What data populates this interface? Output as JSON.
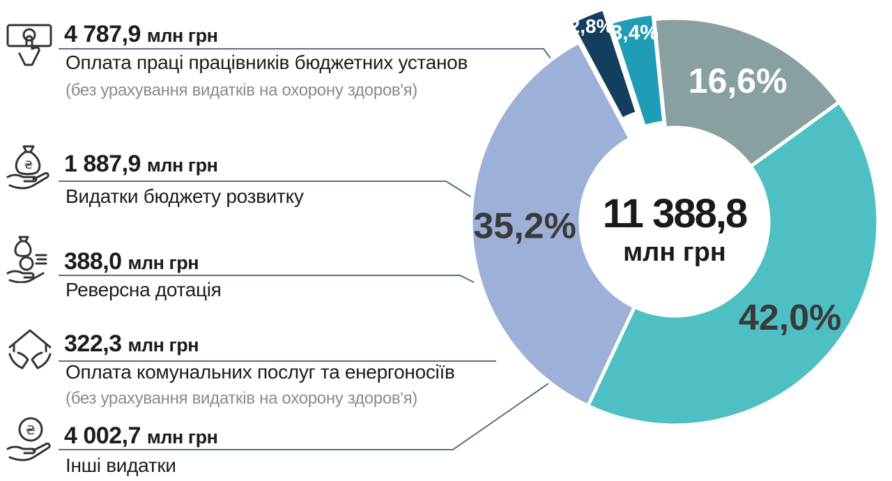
{
  "chart_data": {
    "type": "pie",
    "style": "donut",
    "total": {
      "value": "11 388,8",
      "unit": "млн грн"
    },
    "segments": [
      {
        "amount": "4 787,9",
        "unit": "млн грн",
        "label": "Оплата праці працівників бюджетних установ",
        "note": "(без урахування видатків на охорону здоров'я)",
        "percent": 42.0,
        "percent_label": "42,0%",
        "color": "#4ebfc3",
        "icon": "hand-coin-icon"
      },
      {
        "amount": "1 887,9",
        "unit": "млн грн",
        "label": "Видатки бюджету розвитку",
        "note": "",
        "percent": 16.6,
        "percent_label": "16,6%",
        "color": "#88a1a0",
        "icon": "money-bag-hand-icon"
      },
      {
        "amount": "388,0",
        "unit": "млн грн",
        "label": "Реверсна дотація",
        "note": "",
        "percent": 3.4,
        "percent_label": "3,4%",
        "color": "#1f9cb6",
        "icon": "coin-return-icon"
      },
      {
        "amount": "322,3",
        "unit": "млн грн",
        "label": "Оплата комунальних послуг та енергоносіїв",
        "note": "(без урахування видатків на охорону здоров'я)",
        "percent": 2.8,
        "percent_label": "2,8%",
        "color": "#143e5e",
        "icon": "house-hands-icon"
      },
      {
        "amount": "4 002,7",
        "unit": "млн грн",
        "label": "Інші видатки",
        "note": "",
        "percent": 35.2,
        "percent_label": "35,2%",
        "color": "#9db0d8",
        "icon": "coin-hand-icon"
      }
    ]
  }
}
